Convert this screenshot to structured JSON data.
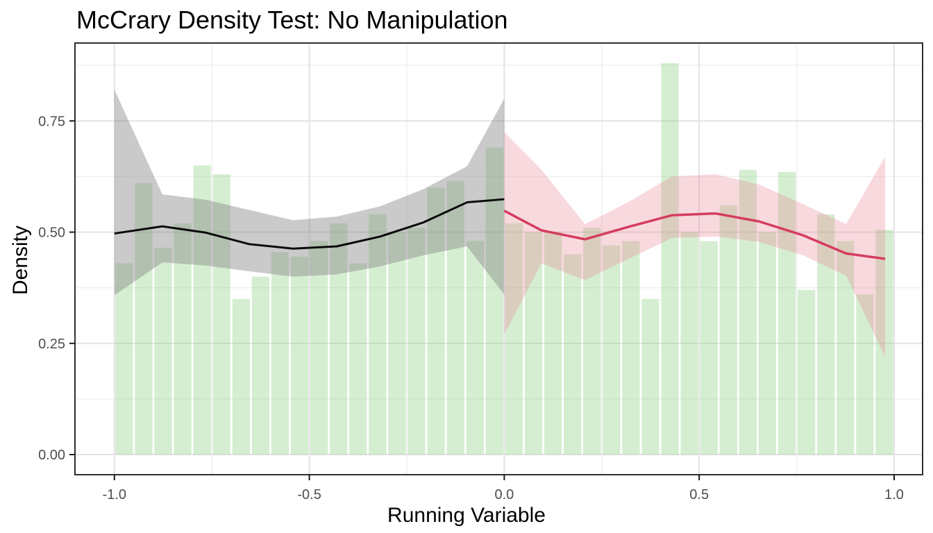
{
  "chart_data": {
    "type": "bar",
    "title": "McCrary Density Test: No Manipulation",
    "xlabel": "Running Variable",
    "ylabel": "Density",
    "legend": "none",
    "grid": "on",
    "cutoff": 0,
    "xlim": [
      -1.105,
      1.075
    ],
    "ylim": [
      -0.045,
      0.925
    ],
    "x_ticks": {
      "values": [
        -1.0,
        -0.5,
        0.0,
        0.5,
        1.0
      ],
      "labels": [
        "-1.0",
        "-0.5",
        "0.0",
        "0.5",
        "1.0"
      ]
    },
    "x_minor_ticks": [
      -0.75,
      -0.25,
      0.25,
      0.75
    ],
    "y_ticks": {
      "values": [
        0.0,
        0.25,
        0.5,
        0.75
      ],
      "labels": [
        "0.00",
        "0.25",
        "0.50",
        "0.75"
      ]
    },
    "y_minor_ticks": [
      0.125,
      0.375,
      0.625,
      0.875
    ],
    "histogram": {
      "bin_start": -1.0,
      "bin_width": 0.05,
      "values": [
        0.43,
        0.61,
        0.465,
        0.52,
        0.65,
        0.63,
        0.35,
        0.4,
        0.455,
        0.445,
        0.48,
        0.52,
        0.43,
        0.54,
        0.5,
        0.51,
        0.6,
        0.615,
        0.48,
        0.69,
        0.52,
        0.5,
        0.5,
        0.45,
        0.51,
        0.47,
        0.48,
        0.35,
        0.88,
        0.5,
        0.48,
        0.56,
        0.64,
        0.5,
        0.635,
        0.37,
        0.54,
        0.48,
        0.36,
        0.505
      ]
    },
    "series": [
      {
        "name": "pre-cutoff-fit",
        "x": [
          -1.0,
          -0.877,
          -0.766,
          -0.654,
          -0.542,
          -0.43,
          -0.319,
          -0.207,
          -0.0955,
          0
        ],
        "y": [
          0.497,
          0.513,
          0.499,
          0.473,
          0.463,
          0.468,
          0.49,
          0.522,
          0.567,
          0.574
        ],
        "band_lo": [
          0.358,
          0.432,
          0.425,
          0.412,
          0.4,
          0.405,
          0.423,
          0.448,
          0.468,
          0.36
        ],
        "band_hi": [
          0.82,
          0.585,
          0.573,
          0.55,
          0.527,
          0.535,
          0.558,
          0.597,
          0.648,
          0.8
        ]
      },
      {
        "name": "post-cutoff-fit",
        "x": [
          0,
          0.0955,
          0.207,
          0.319,
          0.43,
          0.542,
          0.654,
          0.766,
          0.877,
          0.977
        ],
        "y": [
          0.548,
          0.504,
          0.484,
          0.512,
          0.538,
          0.542,
          0.524,
          0.493,
          0.452,
          0.44
        ],
        "band_lo": [
          0.27,
          0.43,
          0.392,
          0.44,
          0.487,
          0.49,
          0.478,
          0.448,
          0.402,
          0.22
        ],
        "band_hi": [
          0.725,
          0.64,
          0.518,
          0.568,
          0.625,
          0.63,
          0.607,
          0.563,
          0.518,
          0.67
        ]
      }
    ],
    "colors": {
      "bar_fill": "rgba(136,205,122,0.35)",
      "band_left_fill": "rgba(128,128,128,0.42)",
      "band_right_fill": "rgba(232,132,148,0.31)",
      "line_left": "#0a0a0a",
      "line_right": "#d43d5e",
      "grid_major": "#e3e3e3",
      "grid_minor": "#efefef",
      "panel_border": "#2f2f2f",
      "tick_color": "#1a1a1a",
      "tick_label_color": "#4d4d4d"
    }
  }
}
